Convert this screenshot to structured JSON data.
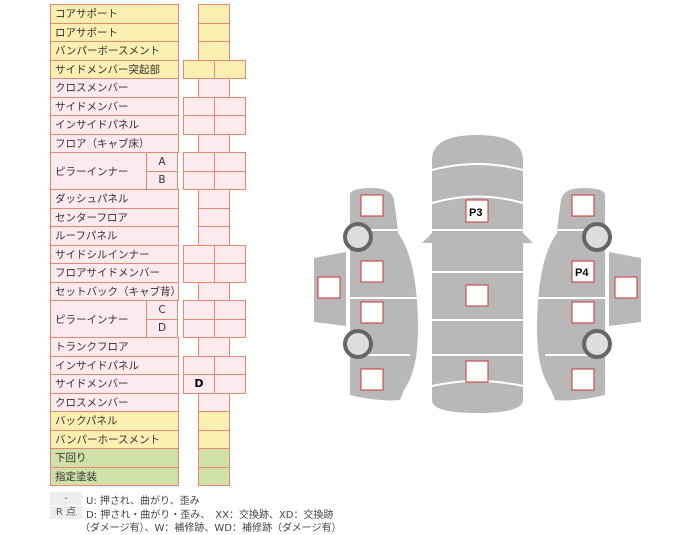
{
  "colors": {
    "yellow": "#fbefb1",
    "pink": "#fdeaee",
    "green": "#cfe0a8",
    "border": "#e48a74",
    "car": "#b8b8b8"
  },
  "rows": [
    {
      "label": "コアサポート",
      "color": "yellow",
      "cells": "single",
      "values": [
        ""
      ]
    },
    {
      "label": "ロアサポート",
      "color": "yellow",
      "cells": "single",
      "values": [
        ""
      ]
    },
    {
      "label": "バンパーボースメント",
      "color": "yellow",
      "cells": "single",
      "values": [
        ""
      ]
    },
    {
      "label": "サイドメンバー突起部",
      "color": "yellow",
      "cells": "double",
      "values": [
        "",
        ""
      ]
    },
    {
      "label": "クロスメンバー",
      "color": "pink",
      "cells": "single",
      "values": [
        ""
      ]
    },
    {
      "label": "サイドメンバー",
      "color": "pink",
      "cells": "double",
      "values": [
        "",
        ""
      ]
    },
    {
      "label": "インサイドパネル",
      "color": "pink",
      "cells": "double",
      "values": [
        "",
        ""
      ]
    },
    {
      "label": "フロア（キャブ床）",
      "color": "pink",
      "cells": "single",
      "values": [
        ""
      ]
    },
    {
      "label": "ピラーインナー",
      "sub": "A",
      "group": 2,
      "color": "pink",
      "cells": "double",
      "values": [
        "",
        ""
      ]
    },
    {
      "sub": "B",
      "color": "pink",
      "cells": "double",
      "values": [
        "",
        ""
      ]
    },
    {
      "label": "ダッシュパネル",
      "color": "pink",
      "cells": "single",
      "values": [
        ""
      ]
    },
    {
      "label": "センターフロア",
      "color": "pink",
      "cells": "single",
      "values": [
        ""
      ]
    },
    {
      "label": "ルーフパネル",
      "color": "pink",
      "cells": "single",
      "values": [
        ""
      ]
    },
    {
      "label": "サイドシルインナー",
      "color": "pink",
      "cells": "double",
      "values": [
        "",
        ""
      ]
    },
    {
      "label": "フロアサイドメンバー",
      "color": "pink",
      "cells": "double",
      "values": [
        "",
        ""
      ]
    },
    {
      "label": "セットバック（キャブ背）",
      "color": "pink",
      "cells": "single",
      "values": [
        ""
      ]
    },
    {
      "label": "ピラーインナー",
      "sub": "C",
      "group": 2,
      "color": "pink",
      "cells": "double",
      "values": [
        "",
        ""
      ]
    },
    {
      "sub": "D",
      "color": "pink",
      "cells": "double",
      "values": [
        "",
        ""
      ]
    },
    {
      "label": "トランクフロア",
      "color": "pink",
      "cells": "single",
      "values": [
        ""
      ]
    },
    {
      "label": "インサイドパネル",
      "color": "pink",
      "cells": "double",
      "values": [
        "",
        ""
      ]
    },
    {
      "label": "サイドメンバー",
      "color": "pink",
      "cells": "double",
      "values": [
        "D",
        ""
      ]
    },
    {
      "label": "クロスメンバー",
      "color": "pink",
      "cells": "single",
      "values": [
        ""
      ]
    },
    {
      "label": "バックパネル",
      "color": "yellow",
      "cells": "single",
      "values": [
        ""
      ]
    },
    {
      "label": "バンパーホースメント",
      "color": "yellow",
      "cells": "single",
      "values": [
        ""
      ]
    },
    {
      "label": "下回り",
      "color": "green",
      "cells": "single",
      "values": [
        ""
      ]
    },
    {
      "label": "指定塗装",
      "color": "green",
      "cells": "single",
      "values": [
        ""
      ]
    }
  ],
  "legend": [
    {
      "key": "-",
      "text": "U: 押され、曲がり、歪み"
    },
    {
      "key": "R 点",
      "text": "D: 押され・曲がり・歪み、　XX：交換跡、XD：交換跡"
    },
    {
      "key": "",
      "text": "（ダメージ有）、W：補修跡、WD：補修跡（ダメージ有）"
    }
  ],
  "diagram": {
    "marks": {
      "center_top": "P3",
      "right_middle": "P4"
    }
  }
}
